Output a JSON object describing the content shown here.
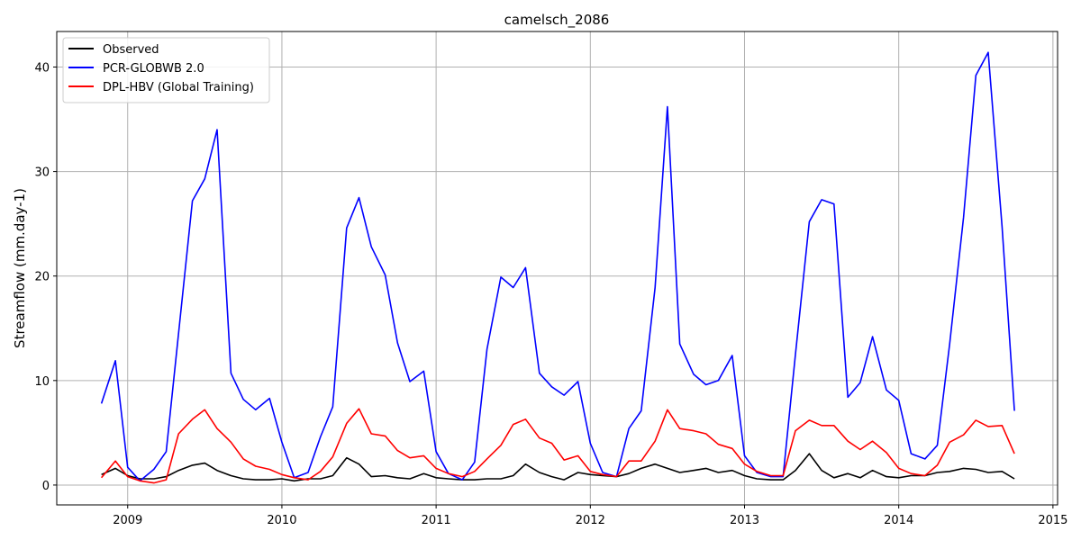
{
  "chart_data": {
    "type": "line",
    "title": "camelsch_2086",
    "xlabel": "",
    "ylabel": "Streamflow (mm.day-1)",
    "xlim": [
      2008.54,
      2015.03
    ],
    "ylim": [
      -1.9,
      43.4
    ],
    "grid": true,
    "legend_position": "top-left",
    "x_ticks": [
      2009,
      2010,
      2011,
      2012,
      2013,
      2014,
      2015
    ],
    "x_tick_labels": [
      "2009",
      "2010",
      "2011",
      "2012",
      "2013",
      "2014",
      "2015"
    ],
    "y_ticks": [
      0,
      10,
      20,
      30,
      40
    ],
    "y_tick_labels": [
      "0",
      "10",
      "20",
      "30",
      "40"
    ],
    "x": [
      2008.83,
      2008.92,
      2009.0,
      2009.08,
      2009.17,
      2009.25,
      2009.33,
      2009.42,
      2009.5,
      2009.58,
      2009.67,
      2009.75,
      2009.83,
      2009.92,
      2010.0,
      2010.08,
      2010.17,
      2010.25,
      2010.33,
      2010.42,
      2010.5,
      2010.58,
      2010.67,
      2010.75,
      2010.83,
      2010.92,
      2011.0,
      2011.08,
      2011.17,
      2011.25,
      2011.33,
      2011.42,
      2011.5,
      2011.58,
      2011.67,
      2011.75,
      2011.83,
      2011.92,
      2012.0,
      2012.08,
      2012.17,
      2012.25,
      2012.33,
      2012.42,
      2012.5,
      2012.58,
      2012.67,
      2012.75,
      2012.83,
      2012.92,
      2013.0,
      2013.08,
      2013.17,
      2013.25,
      2013.33,
      2013.42,
      2013.5,
      2013.58,
      2013.67,
      2013.75,
      2013.83,
      2013.92,
      2014.0,
      2014.08,
      2014.17,
      2014.25,
      2014.33,
      2014.42,
      2014.5,
      2014.58,
      2014.67,
      2014.75
    ],
    "series": [
      {
        "name": "Observed",
        "color": "#000000",
        "values": [
          1.0,
          1.6,
          0.9,
          0.6,
          0.6,
          0.8,
          1.4,
          1.9,
          2.1,
          1.4,
          0.9,
          0.6,
          0.5,
          0.5,
          0.6,
          0.4,
          0.6,
          0.6,
          0.9,
          2.6,
          2.0,
          0.8,
          0.9,
          0.7,
          0.6,
          1.1,
          0.7,
          0.6,
          0.5,
          0.5,
          0.6,
          0.6,
          0.9,
          2.0,
          1.2,
          0.8,
          0.5,
          1.2,
          1.0,
          0.9,
          0.8,
          1.1,
          1.6,
          2.0,
          1.6,
          1.2,
          1.4,
          1.6,
          1.2,
          1.4,
          0.9,
          0.6,
          0.5,
          0.5,
          1.4,
          3.0,
          1.4,
          0.7,
          1.1,
          0.7,
          1.4,
          0.8,
          0.7,
          0.9,
          0.9,
          1.2,
          1.3,
          1.6,
          1.5,
          1.2,
          1.3,
          0.6
        ]
      },
      {
        "name": "PCR-GLOBWB 2.0",
        "color": "#0000ff",
        "values": [
          7.8,
          11.9,
          1.7,
          0.4,
          1.5,
          3.2,
          14.5,
          27.2,
          29.3,
          34.0,
          10.7,
          8.2,
          7.2,
          8.3,
          4.1,
          0.7,
          1.2,
          4.6,
          7.5,
          24.6,
          27.5,
          22.8,
          20.1,
          13.6,
          9.9,
          10.9,
          3.2,
          1.1,
          0.5,
          2.2,
          13.0,
          19.9,
          18.9,
          20.8,
          10.7,
          9.4,
          8.6,
          9.9,
          4.0,
          1.2,
          0.8,
          5.4,
          7.1,
          18.9,
          36.2,
          13.5,
          10.6,
          9.6,
          10.0,
          12.4,
          2.8,
          1.2,
          0.8,
          0.8,
          12.5,
          25.2,
          27.3,
          26.9,
          8.4,
          9.8,
          14.2,
          9.1,
          8.1,
          3.0,
          2.5,
          3.8,
          13.5,
          25.6,
          39.2,
          41.4,
          24.7,
          7.1
        ]
      },
      {
        "name": "DPL-HBV (Global Training)",
        "color": "#ff0000",
        "values": [
          0.7,
          2.3,
          0.8,
          0.4,
          0.2,
          0.5,
          4.9,
          6.3,
          7.2,
          5.4,
          4.1,
          2.5,
          1.8,
          1.5,
          1.0,
          0.7,
          0.5,
          1.3,
          2.7,
          5.9,
          7.3,
          4.9,
          4.7,
          3.3,
          2.6,
          2.8,
          1.6,
          1.1,
          0.8,
          1.3,
          2.5,
          3.8,
          5.8,
          6.3,
          4.5,
          4.0,
          2.4,
          2.8,
          1.3,
          1.0,
          0.8,
          2.3,
          2.3,
          4.2,
          7.2,
          5.4,
          5.2,
          4.9,
          3.9,
          3.5,
          2.0,
          1.3,
          0.9,
          0.9,
          5.2,
          6.2,
          5.7,
          5.7,
          4.2,
          3.4,
          4.2,
          3.1,
          1.6,
          1.1,
          0.9,
          1.9,
          4.1,
          4.8,
          6.2,
          5.6,
          5.7,
          3.0
        ]
      }
    ]
  }
}
